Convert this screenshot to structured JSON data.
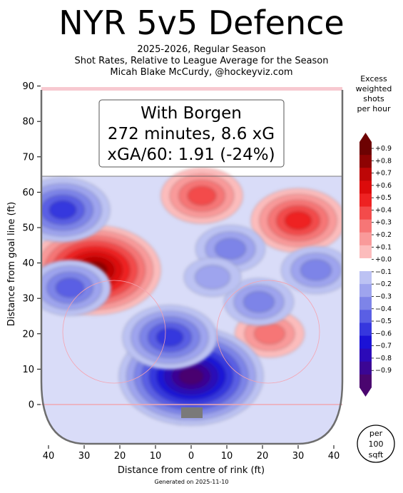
{
  "header": {
    "title": "NYR 5v5 Defence",
    "subtitle_lines": [
      "2025-2026, Regular Season",
      "Shot Rates, Relative to League Average for the Season",
      "Micah Blake McCurdy, @hockeyviz.com"
    ]
  },
  "annotation": {
    "line1": "With Borgen",
    "line2": "272 minutes, 8.6 xG",
    "line3": "xGA/60: 1.91 (-24%)"
  },
  "colorbar": {
    "title_lines": [
      "Excess",
      "weighted",
      "shots",
      "per hour"
    ],
    "tick_labels": [
      "+0.9",
      "+0.8",
      "+0.7",
      "+0.6",
      "+0.5",
      "+0.4",
      "+0.3",
      "+0.2",
      "+0.1",
      "+0.0",
      "−0.1",
      "−0.2",
      "−0.3",
      "−0.4",
      "−0.5",
      "−0.6",
      "−0.7",
      "−0.8",
      "−0.9"
    ]
  },
  "badge": {
    "lines": [
      "per",
      "100",
      "sqft"
    ]
  },
  "footer": {
    "generated": "Generated on 2025-11-10"
  },
  "colors": {
    "pos": [
      "#fee2e2",
      "#fcbcbc",
      "#f99a9a",
      "#f67676",
      "#f34b4b",
      "#ee2222",
      "#dc0b0b",
      "#bd0606",
      "#8e0303",
      "#6d0202"
    ],
    "neg": [
      "#d9dcf8",
      "#bcc2f3",
      "#9ea4ee",
      "#7d84e8",
      "#5a5fe4",
      "#3637de",
      "#1b12d6",
      "#2c0ab8",
      "#3b0694",
      "#4a056f"
    ]
  },
  "chart_data": {
    "type": "heatmap",
    "title": "NYR 5v5 Defence",
    "xlabel": "Distance from centre of rink (ft)",
    "ylabel": "Distance from goal line (ft)",
    "xlim": [
      -42,
      42
    ],
    "ylim": [
      -10,
      90
    ],
    "x_ticks": [
      40,
      30,
      20,
      10,
      0,
      10,
      20,
      30,
      40
    ],
    "y_ticks": [
      0,
      10,
      20,
      30,
      40,
      50,
      60,
      70,
      80,
      90
    ],
    "colorbar_range": [
      -0.9,
      0.9
    ],
    "hotspots": [
      {
        "x": 30,
        "y": 52,
        "value": 0.45
      },
      {
        "x": 3,
        "y": 59,
        "value": 0.35
      },
      {
        "x": 22,
        "y": 20,
        "value": 0.3
      },
      {
        "x": -27,
        "y": 38,
        "value": 0.8
      },
      {
        "x": 0,
        "y": 8,
        "value": -0.9
      },
      {
        "x": -6,
        "y": 19,
        "value": -0.5
      },
      {
        "x": -34,
        "y": 33,
        "value": -0.4
      },
      {
        "x": -36,
        "y": 55,
        "value": -0.45
      },
      {
        "x": 19,
        "y": 29,
        "value": -0.3
      },
      {
        "x": 11,
        "y": 44,
        "value": -0.3
      },
      {
        "x": 35,
        "y": 38,
        "value": -0.25
      },
      {
        "x": 6,
        "y": 36,
        "value": -0.2
      }
    ]
  }
}
